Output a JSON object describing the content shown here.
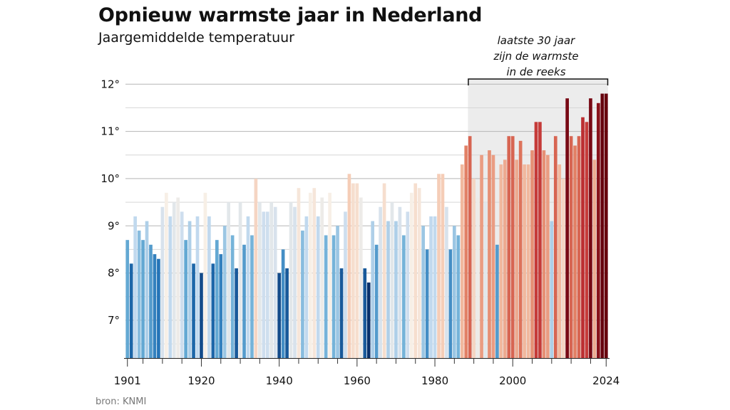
{
  "title": "Opnieuw warmste jaar in Nederland",
  "subtitle": "Jaargemiddelde temperatuur",
  "source": "bron: KNMI",
  "annotation": {
    "lines": [
      "laatste 30 jaar",
      "zijn de warmste",
      "in de reeks"
    ],
    "start_year": 1989,
    "end_year": 2024,
    "band_color": "#ececec"
  },
  "chart_data": {
    "type": "bar",
    "title": "Opnieuw warmste jaar in Nederland",
    "subtitle": "Jaargemiddelde temperatuur",
    "xlabel": "",
    "ylabel": "",
    "ylim": [
      6.2,
      12.2
    ],
    "yticks": [
      7,
      8,
      9,
      10,
      11,
      12
    ],
    "ytick_labels": [
      "7°",
      "8°",
      "9°",
      "10°",
      "11°",
      "12°"
    ],
    "xticks": [
      1901,
      1920,
      1940,
      1960,
      1980,
      2000,
      2024
    ],
    "xtick_labels": [
      "1901",
      "1920",
      "1940",
      "1960",
      "1980",
      "2000",
      "2024"
    ],
    "grid": true,
    "color_scale": {
      "min_color": "#08306b",
      "mid_color": "#f7efe6",
      "max_color": "#67000d",
      "min": 7.8,
      "mid": 9.7,
      "max": 11.8
    },
    "x": [
      1901,
      1902,
      1903,
      1904,
      1905,
      1906,
      1907,
      1908,
      1909,
      1910,
      1911,
      1912,
      1913,
      1914,
      1915,
      1916,
      1917,
      1918,
      1919,
      1920,
      1921,
      1922,
      1923,
      1924,
      1925,
      1926,
      1927,
      1928,
      1929,
      1930,
      1931,
      1932,
      1933,
      1934,
      1935,
      1936,
      1937,
      1938,
      1939,
      1940,
      1941,
      1942,
      1943,
      1944,
      1945,
      1946,
      1947,
      1948,
      1949,
      1950,
      1951,
      1952,
      1953,
      1954,
      1955,
      1956,
      1957,
      1958,
      1959,
      1960,
      1961,
      1962,
      1963,
      1964,
      1965,
      1966,
      1967,
      1968,
      1969,
      1970,
      1971,
      1972,
      1973,
      1974,
      1975,
      1976,
      1977,
      1978,
      1979,
      1980,
      1981,
      1982,
      1983,
      1984,
      1985,
      1986,
      1987,
      1988,
      1989,
      1990,
      1991,
      1992,
      1993,
      1994,
      1995,
      1996,
      1997,
      1998,
      1999,
      2000,
      2001,
      2002,
      2003,
      2004,
      2005,
      2006,
      2007,
      2008,
      2009,
      2010,
      2011,
      2012,
      2013,
      2014,
      2015,
      2016,
      2017,
      2018,
      2019,
      2020,
      2021,
      2022,
      2023,
      2024
    ],
    "values": [
      8.7,
      8.2,
      9.2,
      8.9,
      8.7,
      9.1,
      8.6,
      8.4,
      8.3,
      9.4,
      9.7,
      9.2,
      9.5,
      9.6,
      9.3,
      8.7,
      9.1,
      8.2,
      9.2,
      8.0,
      9.7,
      9.2,
      8.2,
      8.7,
      8.4,
      9.0,
      9.5,
      8.8,
      8.1,
      9.5,
      8.6,
      9.2,
      8.8,
      10.0,
      9.5,
      9.3,
      9.3,
      9.5,
      9.4,
      8.0,
      8.5,
      8.1,
      9.5,
      9.4,
      9.8,
      8.9,
      9.2,
      9.7,
      9.8,
      9.2,
      9.6,
      8.8,
      9.7,
      8.8,
      9.0,
      8.1,
      9.3,
      10.1,
      9.9,
      9.9,
      9.6,
      8.1,
      7.8,
      9.1,
      8.6,
      9.4,
      9.9,
      9.1,
      9.5,
      9.1,
      9.4,
      8.8,
      9.3,
      9.7,
      9.9,
      9.8,
      9.0,
      8.5,
      9.2,
      9.2,
      10.1,
      10.1,
      9.4,
      8.5,
      9.0,
      8.8,
      10.3,
      10.7,
      10.9,
      10.0,
      9.6,
      10.5,
      9.5,
      10.6,
      10.5,
      8.6,
      10.3,
      10.4,
      10.9,
      10.9,
      10.4,
      10.8,
      10.3,
      10.3,
      10.6,
      11.2,
      11.2,
      10.6,
      10.5,
      9.1,
      10.9,
      10.3,
      10.0,
      11.7,
      10.9,
      10.7,
      10.9,
      11.3,
      11.2,
      11.7,
      10.4,
      11.6,
      11.8,
      11.8
    ]
  }
}
